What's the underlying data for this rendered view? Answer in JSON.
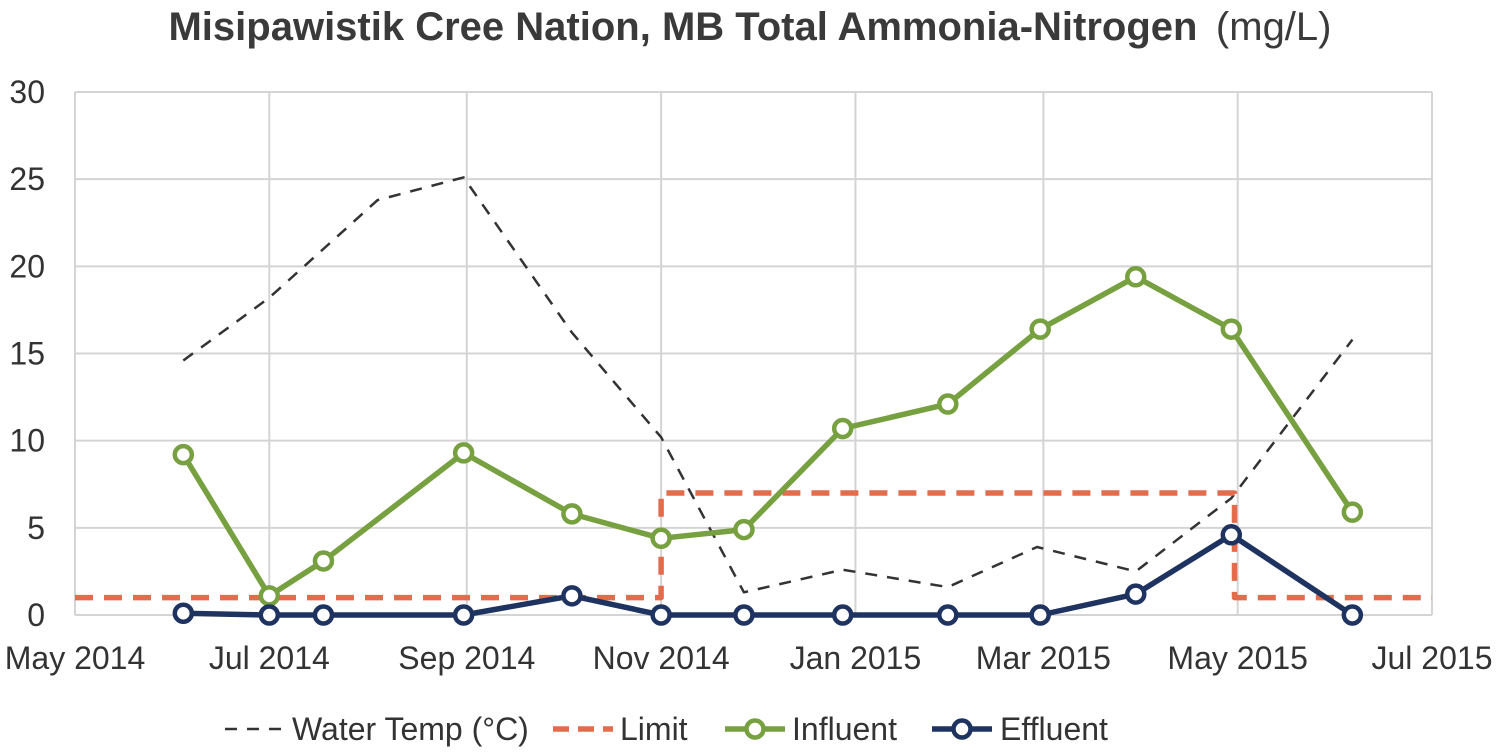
{
  "chart_data": {
    "type": "line",
    "title": "Misipawistik Cree Nation, MB Total Ammonia-Nitrogen",
    "title_unit": "(mg/L)",
    "xlabel": "",
    "ylabel": "",
    "x_axis": {
      "type": "date",
      "min": "2014-05-01",
      "max": "2015-07-01",
      "tick_labels": [
        "May 2014",
        "Jul 2014",
        "Sep 2014",
        "Nov 2014",
        "Jan 2015",
        "Mar 2015",
        "May 2015",
        "Jul 2015"
      ],
      "tick_dates": [
        "2014-05-01",
        "2014-07-01",
        "2014-09-01",
        "2014-11-01",
        "2015-01-01",
        "2015-03-01",
        "2015-05-01",
        "2015-07-01"
      ]
    },
    "ylim": [
      0,
      30
    ],
    "y_ticks": [
      0,
      5,
      10,
      15,
      20,
      25,
      30
    ],
    "grid": true,
    "legend_position": "bottom",
    "series": [
      {
        "name": "Water Temp (°C)",
        "style": "dashed-thin",
        "color": "#333333",
        "points": [
          {
            "x": "2014-06-04",
            "y": 14.6
          },
          {
            "x": "2014-07-01",
            "y": 18.2
          },
          {
            "x": "2014-08-04",
            "y": 23.8
          },
          {
            "x": "2014-08-31",
            "y": 25.1
          },
          {
            "x": "2014-10-04",
            "y": 16.2
          },
          {
            "x": "2014-11-01",
            "y": 10.2
          },
          {
            "x": "2014-11-27",
            "y": 1.3
          },
          {
            "x": "2014-12-28",
            "y": 2.6
          },
          {
            "x": "2015-01-30",
            "y": 1.6
          },
          {
            "x": "2015-02-27",
            "y": 3.9
          },
          {
            "x": "2015-03-30",
            "y": 2.5
          },
          {
            "x": "2015-04-29",
            "y": 6.7
          },
          {
            "x": "2015-06-06",
            "y": 15.8
          }
        ]
      },
      {
        "name": "Limit",
        "style": "dashed-thick",
        "color": "#e36c4c",
        "points": [
          {
            "x": "2014-05-01",
            "y": 1
          },
          {
            "x": "2014-11-01",
            "y": 1
          },
          {
            "x": "2014-11-01",
            "y": 7
          },
          {
            "x": "2015-04-30",
            "y": 7
          },
          {
            "x": "2015-04-30",
            "y": 1
          },
          {
            "x": "2015-07-01",
            "y": 1
          }
        ]
      },
      {
        "name": "Influent",
        "style": "solid-markers",
        "color": "#77a040",
        "points": [
          {
            "x": "2014-06-04",
            "y": 9.2
          },
          {
            "x": "2014-07-01",
            "y": 1.1
          },
          {
            "x": "2014-07-18",
            "y": 3.1
          },
          {
            "x": "2014-08-31",
            "y": 9.3
          },
          {
            "x": "2014-10-04",
            "y": 5.8
          },
          {
            "x": "2014-11-01",
            "y": 4.4
          },
          {
            "x": "2014-11-27",
            "y": 4.9
          },
          {
            "x": "2014-12-28",
            "y": 10.7
          },
          {
            "x": "2015-01-30",
            "y": 12.1
          },
          {
            "x": "2015-02-28",
            "y": 16.4
          },
          {
            "x": "2015-03-30",
            "y": 19.4
          },
          {
            "x": "2015-04-29",
            "y": 16.4
          },
          {
            "x": "2015-06-06",
            "y": 5.9
          }
        ]
      },
      {
        "name": "Effluent",
        "style": "solid-markers",
        "color": "#1f3360",
        "points": [
          {
            "x": "2014-06-04",
            "y": 0.1
          },
          {
            "x": "2014-07-01",
            "y": 0.0
          },
          {
            "x": "2014-07-18",
            "y": 0.0
          },
          {
            "x": "2014-08-31",
            "y": 0.0
          },
          {
            "x": "2014-10-04",
            "y": 1.1
          },
          {
            "x": "2014-11-01",
            "y": 0.0
          },
          {
            "x": "2014-11-27",
            "y": 0.0
          },
          {
            "x": "2014-12-28",
            "y": 0.0
          },
          {
            "x": "2015-01-30",
            "y": 0.0
          },
          {
            "x": "2015-02-28",
            "y": 0.0
          },
          {
            "x": "2015-03-30",
            "y": 1.2
          },
          {
            "x": "2015-04-29",
            "y": 4.6
          },
          {
            "x": "2015-06-06",
            "y": 0.0
          }
        ]
      }
    ]
  }
}
